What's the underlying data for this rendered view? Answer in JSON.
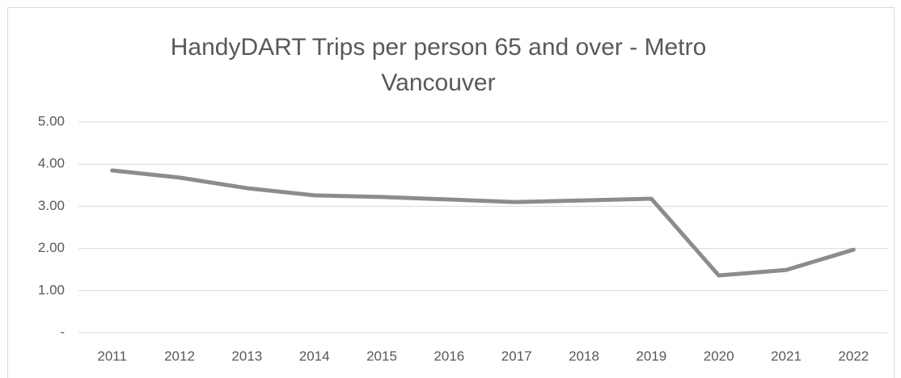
{
  "chart_data": {
    "type": "line",
    "title": [
      "HandyDART Trips per person 65 and over - Metro",
      "Vancouver"
    ],
    "categories": [
      "2011",
      "2012",
      "2013",
      "2014",
      "2015",
      "2016",
      "2017",
      "2018",
      "2019",
      "2020",
      "2021",
      "2022"
    ],
    "series": [
      {
        "color": "#8c8c8c",
        "values": [
          3.85,
          3.68,
          3.43,
          3.26,
          3.22,
          3.16,
          3.1,
          3.14,
          3.18,
          1.36,
          1.49,
          1.97
        ]
      }
    ],
    "ylim": [
      0,
      5
    ],
    "yticks": [
      {
        "value": 0,
        "label": "-"
      },
      {
        "value": 1,
        "label": "1.00"
      },
      {
        "value": 2,
        "label": "2.00"
      },
      {
        "value": 3,
        "label": "3.00"
      },
      {
        "value": 4,
        "label": "4.00"
      },
      {
        "value": 5,
        "label": "5.00"
      }
    ],
    "grid": true
  }
}
